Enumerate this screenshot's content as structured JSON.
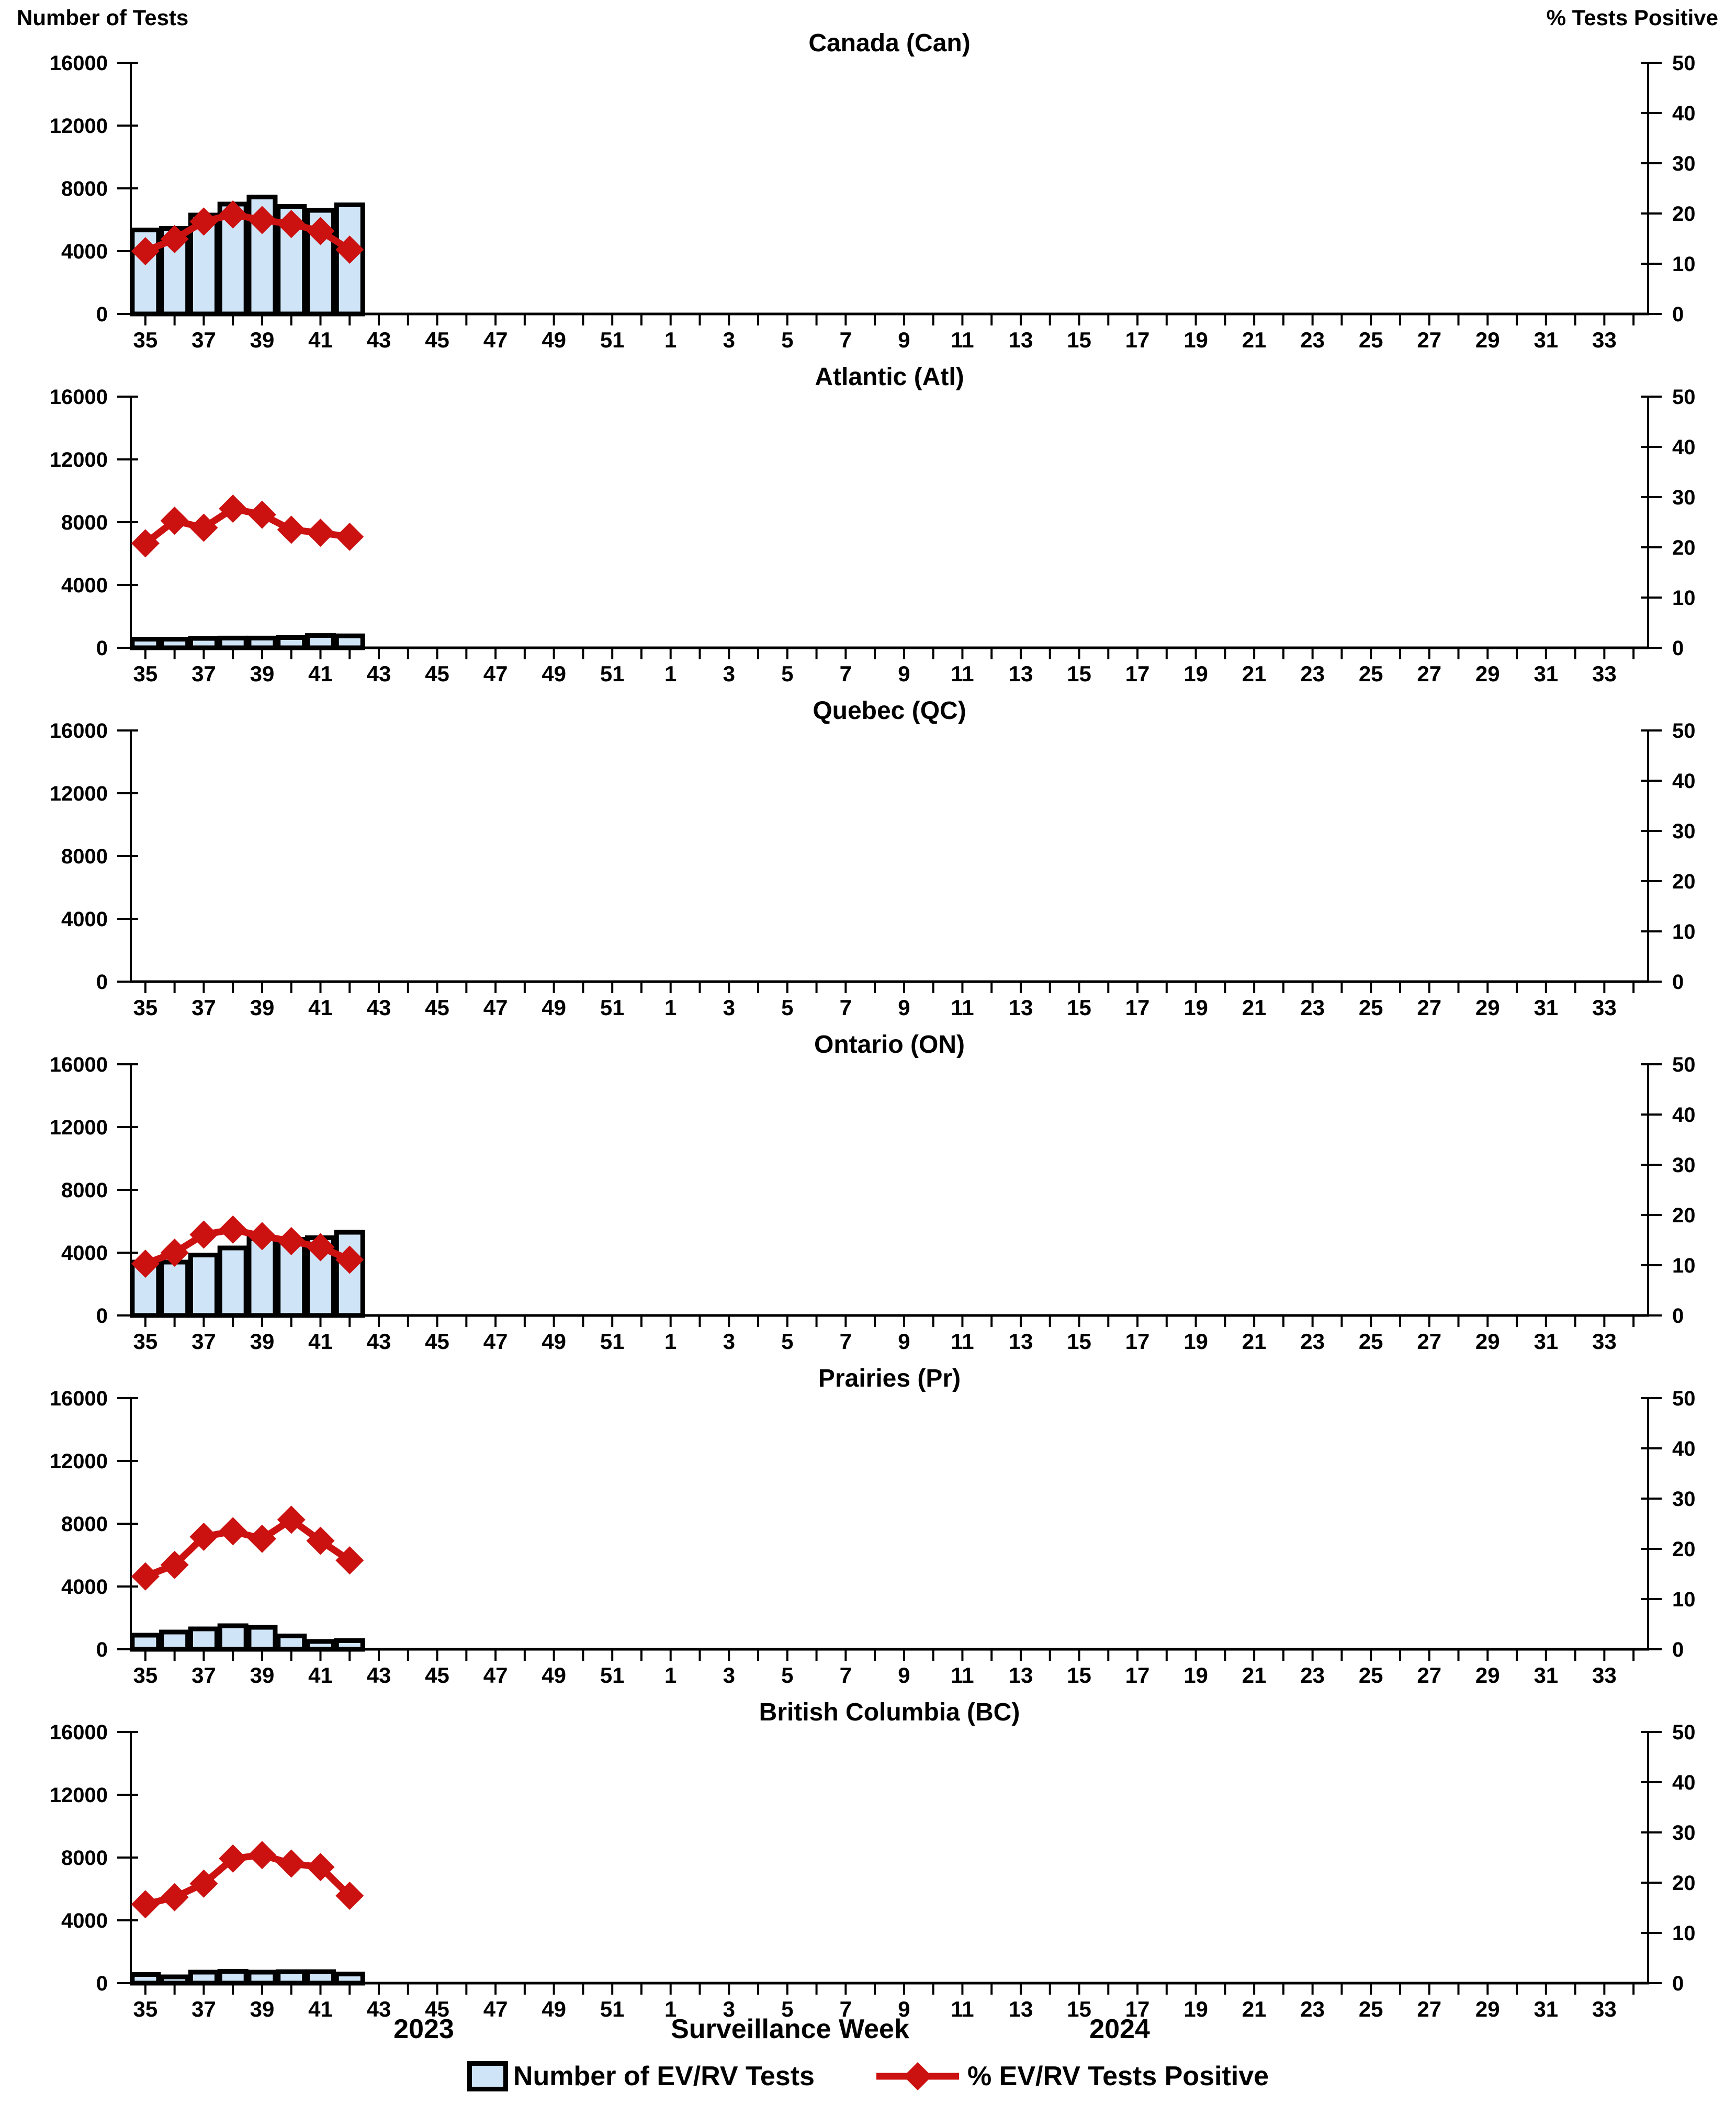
{
  "axes": {
    "left_title": "Number of Tests",
    "right_title": "% Tests Positive",
    "left_ticks": [
      16000,
      12000,
      8000,
      4000,
      0
    ],
    "right_ticks": [
      50,
      40,
      30,
      20,
      10,
      0
    ],
    "ylim_left": [
      0,
      16000
    ],
    "ylim_right": [
      0,
      50
    ],
    "grid": "off",
    "legend_position": "bottom"
  },
  "x_axis": {
    "tick_labels": [
      "35",
      "37",
      "39",
      "41",
      "43",
      "45",
      "47",
      "49",
      "51",
      "1",
      "3",
      "5",
      "7",
      "9",
      "11",
      "13",
      "15",
      "17",
      "19",
      "21",
      "23",
      "25",
      "27",
      "29",
      "31",
      "33"
    ],
    "weeks_2023": "35-52",
    "weeks_2024": "1-34"
  },
  "chart_data": [
    {
      "type": "bar+line",
      "title": "Canada (Can)",
      "region": "Canada",
      "abbr": "Can",
      "weeks": [
        35,
        36,
        37,
        38,
        39,
        40,
        41,
        42
      ],
      "series": [
        {
          "name": "Number of EV/RV Tests",
          "type": "bar",
          "axis": "left",
          "values": [
            5350,
            5450,
            6300,
            7000,
            7450,
            6850,
            6600,
            6950
          ]
        },
        {
          "name": "% EV/RV Tests Positive",
          "type": "line",
          "axis": "right",
          "values": [
            12.5,
            14.9,
            18.4,
            19.8,
            18.7,
            17.9,
            16.5,
            12.8
          ]
        }
      ]
    },
    {
      "type": "bar+line",
      "title": "Atlantic (Atl)",
      "region": "Atlantic",
      "abbr": "Atl",
      "weeks": [
        35,
        36,
        37,
        38,
        39,
        40,
        41,
        42
      ],
      "series": [
        {
          "name": "Number of EV/RV Tests",
          "type": "bar",
          "axis": "left",
          "values": [
            550,
            550,
            600,
            620,
            620,
            650,
            780,
            760
          ]
        },
        {
          "name": "% EV/RV Tests Positive",
          "type": "line",
          "axis": "right",
          "values": [
            20.8,
            25.3,
            23.9,
            27.7,
            26.5,
            23.5,
            22.9,
            22.1
          ]
        }
      ]
    },
    {
      "type": "bar+line",
      "title": "Quebec (QC)",
      "region": "Quebec",
      "abbr": "QC",
      "weeks": [],
      "series": [
        {
          "name": "Number of EV/RV Tests",
          "type": "bar",
          "axis": "left",
          "values": []
        },
        {
          "name": "% EV/RV Tests Positive",
          "type": "line",
          "axis": "right",
          "values": []
        }
      ]
    },
    {
      "type": "bar+line",
      "title": "Ontario (ON)",
      "region": "Ontario",
      "abbr": "ON",
      "weeks": [
        35,
        36,
        37,
        38,
        39,
        40,
        41,
        42
      ],
      "series": [
        {
          "name": "Number of EV/RV Tests",
          "type": "bar",
          "axis": "left",
          "values": [
            3400,
            3400,
            3850,
            4300,
            4900,
            4850,
            4950,
            5300
          ]
        },
        {
          "name": "% EV/RV Tests Positive",
          "type": "line",
          "axis": "right",
          "values": [
            10.3,
            12.5,
            16.1,
            17.1,
            15.8,
            14.8,
            13.6,
            11.1
          ]
        }
      ]
    },
    {
      "type": "bar+line",
      "title": "Prairies (Pr)",
      "region": "Prairies",
      "abbr": "Pr",
      "weeks": [
        35,
        36,
        37,
        38,
        39,
        40,
        41,
        42
      ],
      "series": [
        {
          "name": "Number of EV/RV Tests",
          "type": "bar",
          "axis": "left",
          "values": [
            900,
            1100,
            1300,
            1500,
            1400,
            850,
            500,
            550
          ]
        },
        {
          "name": "% EV/RV Tests Positive",
          "type": "line",
          "axis": "right",
          "values": [
            14.5,
            16.8,
            22.4,
            23.5,
            22.0,
            25.8,
            21.6,
            17.7
          ]
        }
      ]
    },
    {
      "type": "bar+line",
      "title": "British Columbia (BC)",
      "region": "British Columbia",
      "abbr": "BC",
      "weeks": [
        35,
        36,
        37,
        38,
        39,
        40,
        41,
        42
      ],
      "series": [
        {
          "name": "Number of EV/RV Tests",
          "type": "bar",
          "axis": "left",
          "values": [
            550,
            400,
            700,
            750,
            700,
            730,
            730,
            580
          ]
        },
        {
          "name": "% EV/RV Tests Positive",
          "type": "line",
          "axis": "right",
          "values": [
            15.7,
            17.1,
            19.8,
            24.8,
            25.5,
            23.8,
            23.1,
            17.4
          ]
        }
      ]
    }
  ],
  "footer": {
    "year_left": "2023",
    "x_title": "Surveillance Week",
    "year_right": "2024"
  },
  "legend": {
    "bars_label": "Number of EV/RV Tests",
    "line_label": "% EV/RV Tests Positive"
  },
  "colors": {
    "bar_fill": "#CFE5F7",
    "bar_border": "#000000",
    "line": "#CC1111",
    "text": "#000000",
    "background": "#FFFFFF"
  }
}
